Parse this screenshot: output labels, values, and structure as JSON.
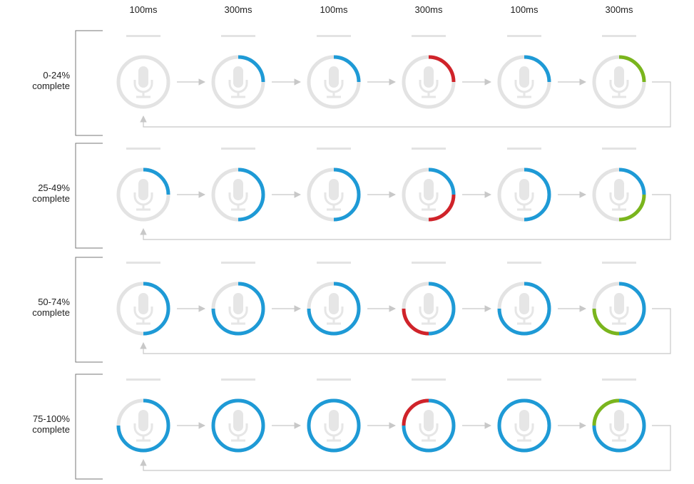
{
  "columns": [
    {
      "duration": "100ms"
    },
    {
      "duration": "300ms"
    },
    {
      "duration": "100ms"
    },
    {
      "duration": "300ms"
    },
    {
      "duration": "100ms"
    },
    {
      "duration": "300ms"
    }
  ],
  "rows": [
    {
      "label_line1": "0-24%",
      "label_line2": "complete",
      "progress": 0.25,
      "highlight": [
        null,
        null,
        null,
        "red",
        null,
        "green"
      ]
    },
    {
      "label_line1": "25-49%",
      "label_line2": "complete",
      "progress": 0.5,
      "highlight": [
        null,
        null,
        null,
        "red",
        null,
        "green"
      ]
    },
    {
      "label_line1": "50-74%",
      "label_line2": "complete",
      "progress": 0.75,
      "highlight": [
        null,
        null,
        null,
        "red",
        null,
        "green"
      ]
    },
    {
      "label_line1": "75-100%",
      "label_line2": "complete",
      "progress": 1.0,
      "highlight": [
        null,
        null,
        null,
        "red",
        null,
        "green"
      ]
    }
  ],
  "ring_pattern": [
    "partial",
    "full",
    "partial",
    "full-highlight",
    "partial",
    "full-highlight"
  ],
  "colors": {
    "track": "#e3e3e3",
    "mic": "#e6e6e6",
    "blue": "#1e9ad6",
    "red": "#d0232a",
    "green": "#7ab51d",
    "arrow": "#c8c8c8",
    "bracket": "#777777"
  },
  "icons": {
    "ring": "microphone-icon",
    "connector": "arrow-right-icon"
  }
}
